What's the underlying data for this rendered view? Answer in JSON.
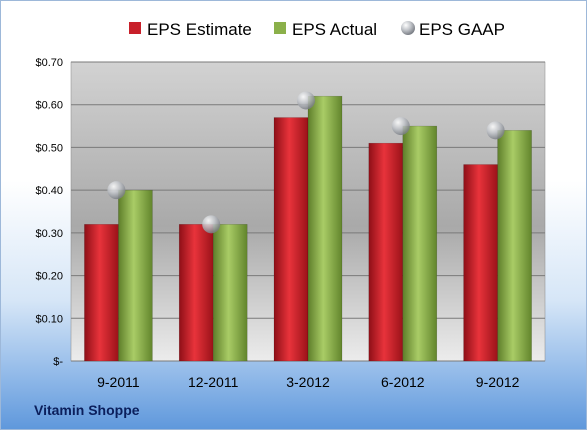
{
  "company": "Vitamin Shoppe",
  "colors": {
    "estimate": "#c8202a",
    "actual": "#8bb04a",
    "gaap": "#b8bcc2"
  },
  "chart_data": {
    "type": "bar",
    "categories": [
      "9-2011",
      "12-2011",
      "3-2012",
      "6-2012",
      "9-2012"
    ],
    "series": [
      {
        "name": "EPS Estimate",
        "kind": "bar",
        "values": [
          0.32,
          0.32,
          0.57,
          0.51,
          0.46
        ]
      },
      {
        "name": "EPS Actual",
        "kind": "bar",
        "values": [
          0.4,
          0.32,
          0.62,
          0.55,
          0.54
        ]
      },
      {
        "name": "EPS GAAP",
        "kind": "marker",
        "values": [
          0.4,
          0.32,
          0.61,
          0.55,
          0.54
        ]
      }
    ],
    "yticks": [
      "$-",
      "$0.10",
      "$0.20",
      "$0.30",
      "$0.40",
      "$0.50",
      "$0.60",
      "$0.70"
    ],
    "ylim": [
      0,
      0.7
    ],
    "legend": "top",
    "grid": true
  }
}
